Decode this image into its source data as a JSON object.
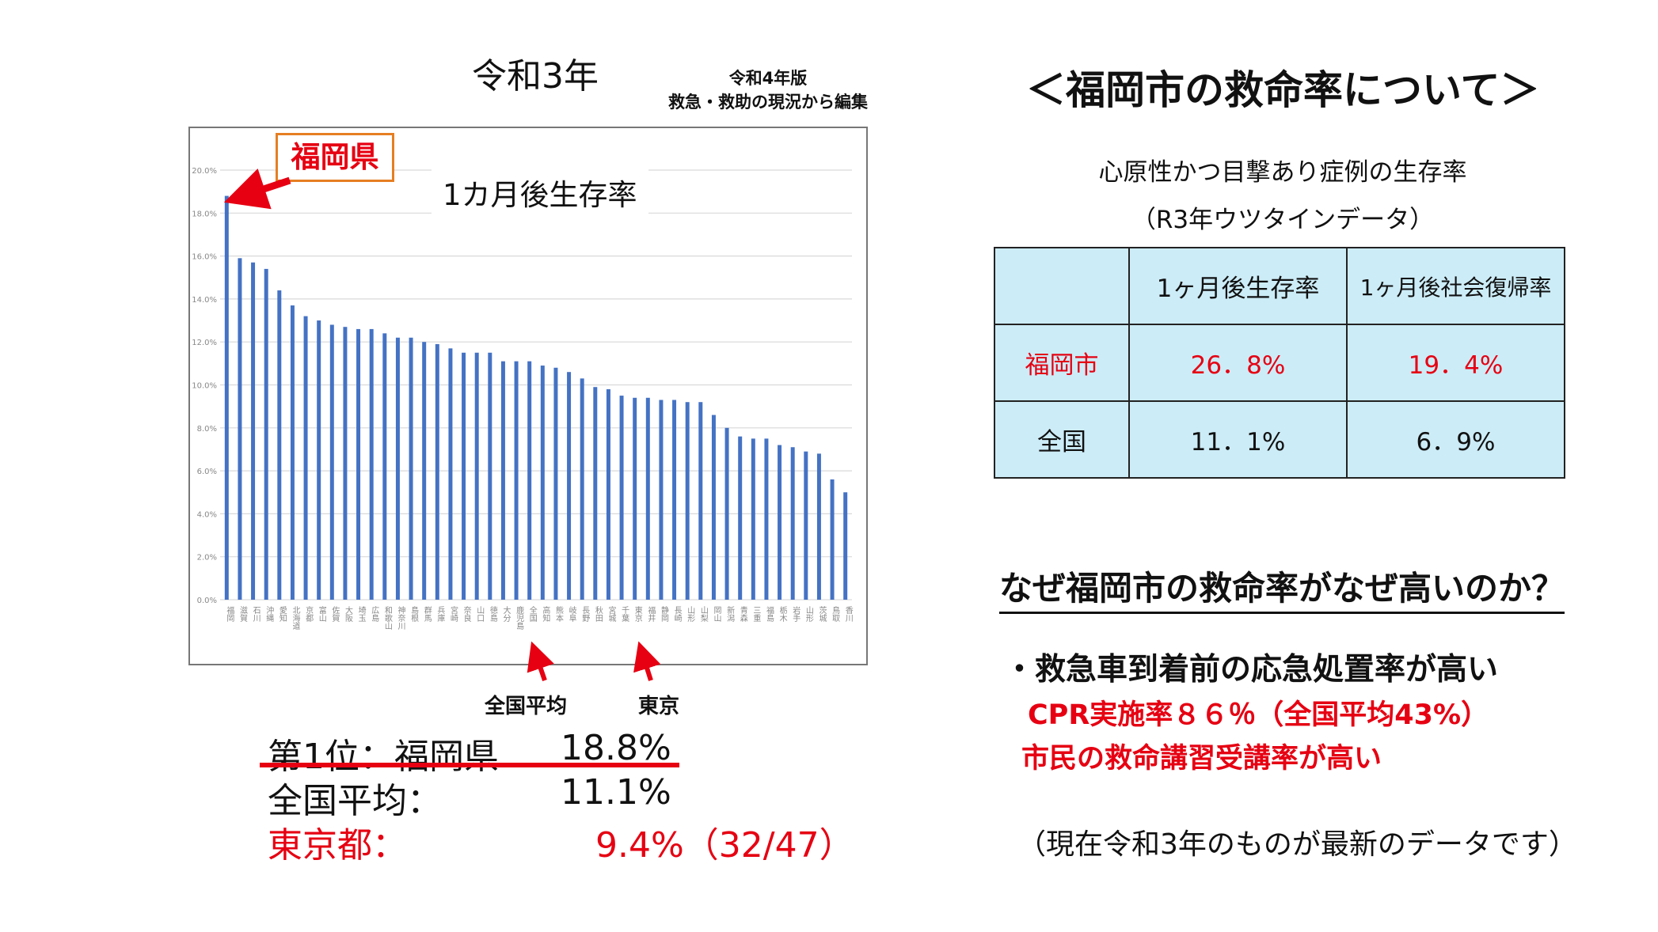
{
  "left": {
    "title": "令和3年",
    "source_line1": "令和4年版",
    "source_line2": "救急・救助の現況から編集",
    "callout_label": "福岡県",
    "pointer_national": "全国平均",
    "pointer_tokyo": "東京",
    "summary": [
      {
        "label": "第1位：福岡県",
        "value": "18.8%",
        "color": "#111111"
      },
      {
        "label": "全国平均：",
        "value": "11.1%",
        "color": "#111111"
      },
      {
        "label": "東京都：",
        "value": "　9.4%（32/47）",
        "color": "#e60012"
      }
    ],
    "underline_color": "#e60012"
  },
  "chart_data": {
    "type": "bar",
    "title": "1カ月後生存率",
    "ylim": [
      0,
      20
    ],
    "ytick_labels": [
      "0.0%",
      "2.0%",
      "4.0%",
      "6.0%",
      "8.0%",
      "10.0%",
      "12.0%",
      "14.0%",
      "16.0%",
      "18.0%",
      "20.0%"
    ],
    "grid": true,
    "bar_color": "#4472c4",
    "categories": [
      "福岡",
      "滋賀",
      "石川",
      "沖縄",
      "愛知",
      "北海道",
      "京都",
      "富山",
      "佐賀",
      "大阪",
      "埼玉",
      "広島",
      "和歌山",
      "神奈川",
      "島根",
      "群馬",
      "兵庫",
      "宮崎",
      "奈良",
      "山口",
      "徳島",
      "大分",
      "鹿児島",
      "全国",
      "高知",
      "熊本",
      "岐阜",
      "長野",
      "秋田",
      "宮城",
      "千葉",
      "東京",
      "福井",
      "静岡",
      "長崎",
      "山形",
      "山梨",
      "岡山",
      "新潟",
      "青森",
      "三重",
      "福島",
      "栃木",
      "岩手",
      "山形",
      "茨城",
      "鳥取",
      "香川"
    ],
    "values": [
      18.8,
      15.9,
      15.7,
      15.4,
      14.4,
      13.7,
      13.2,
      13.0,
      12.8,
      12.7,
      12.6,
      12.6,
      12.4,
      12.2,
      12.2,
      12.0,
      11.9,
      11.7,
      11.5,
      11.5,
      11.5,
      11.1,
      11.1,
      11.1,
      10.9,
      10.8,
      10.6,
      10.3,
      9.9,
      9.8,
      9.5,
      9.4,
      9.4,
      9.3,
      9.3,
      9.2,
      9.2,
      8.6,
      8.0,
      7.6,
      7.5,
      7.5,
      7.2,
      7.1,
      6.9,
      6.8,
      5.6,
      5.0
    ]
  },
  "right": {
    "title": "＜福岡市の救命率について＞",
    "table_caption_1": "心原性かつ目撃あり症例の生存率",
    "table_caption_2": "（R3年ウツタインデータ）",
    "table": {
      "headers": [
        "",
        "1ヶ月後生存率",
        "1ヶ月後社会復帰率"
      ],
      "rows": [
        {
          "label": "福岡市",
          "v1": "26．8%",
          "v2": "19．4%",
          "color": "#e60012"
        },
        {
          "label": "全国",
          "v1": "11．1%",
          "v2": "6．9%",
          "color": "#111111"
        }
      ]
    },
    "question": "なぜ福岡市の救命率がなぜ高いのか？",
    "reason_main": "・救急車到着前の応急処置率が高い",
    "reason_sub1": "CPR実施率８６％（全国平均43%）",
    "reason_sub2": "市民の救命講習受講率が高い",
    "note": "（現在令和3年のものが最新のデータです）"
  }
}
